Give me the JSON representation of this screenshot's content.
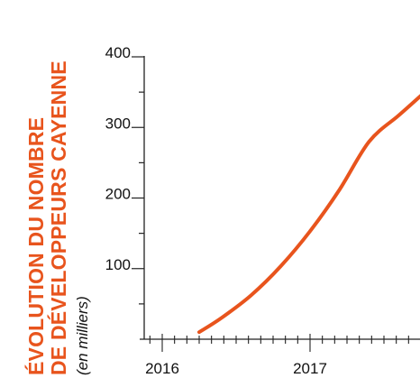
{
  "chart_data": {
    "type": "line",
    "title_lines": [
      "ÉVOLUTION DU NOMBRE",
      "DE DÉVELOPPEURS CAYENNE"
    ],
    "subtitle": "(en milliers)",
    "xlabel": "",
    "ylabel": "",
    "x_ticks": [
      "2016",
      "2017"
    ],
    "y_ticks": [
      100,
      200,
      300,
      400
    ],
    "ylim": [
      0,
      400
    ],
    "series": [
      {
        "x": [
          2016.25,
          2016.4,
          2016.6,
          2016.8,
          2017.0,
          2017.2,
          2017.4,
          2017.6,
          2017.75
        ],
        "values": [
          10,
          30,
          62,
          103,
          153,
          212,
          280,
          317,
          345
        ]
      }
    ],
    "colors": {
      "accent": "#e8541d",
      "axis": "#222222",
      "text": "#111111"
    }
  }
}
